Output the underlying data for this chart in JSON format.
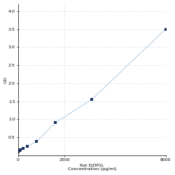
{
  "x_values": [
    0,
    62.5,
    125,
    250,
    500,
    1000,
    2000,
    4000,
    8000
  ],
  "y_values": [
    0.1,
    0.13,
    0.15,
    0.18,
    0.25,
    0.38,
    0.9,
    1.55,
    3.5
  ],
  "line_color": "#b8d0e8",
  "marker_color": "#1a3060",
  "marker_size": 3.5,
  "xlabel_line1": "Rat DZIP1L",
  "xlabel_line2": "Concentration (pg/ml)",
  "ylabel": "OD",
  "xlim": [
    0,
    8000
  ],
  "ylim": [
    0,
    4.2
  ],
  "yticks": [
    0.5,
    1.0,
    1.5,
    2.0,
    2.5,
    3.0,
    3.5,
    4.0
  ],
  "xtick_positions": [
    0,
    2500,
    8000
  ],
  "xtick_labels": [
    "0",
    "2500",
    "8000"
  ],
  "grid_color": "#d5dde8",
  "background_color": "#ffffff",
  "tick_fontsize": 4.5,
  "label_fontsize": 4.5,
  "linewidth": 0.8
}
